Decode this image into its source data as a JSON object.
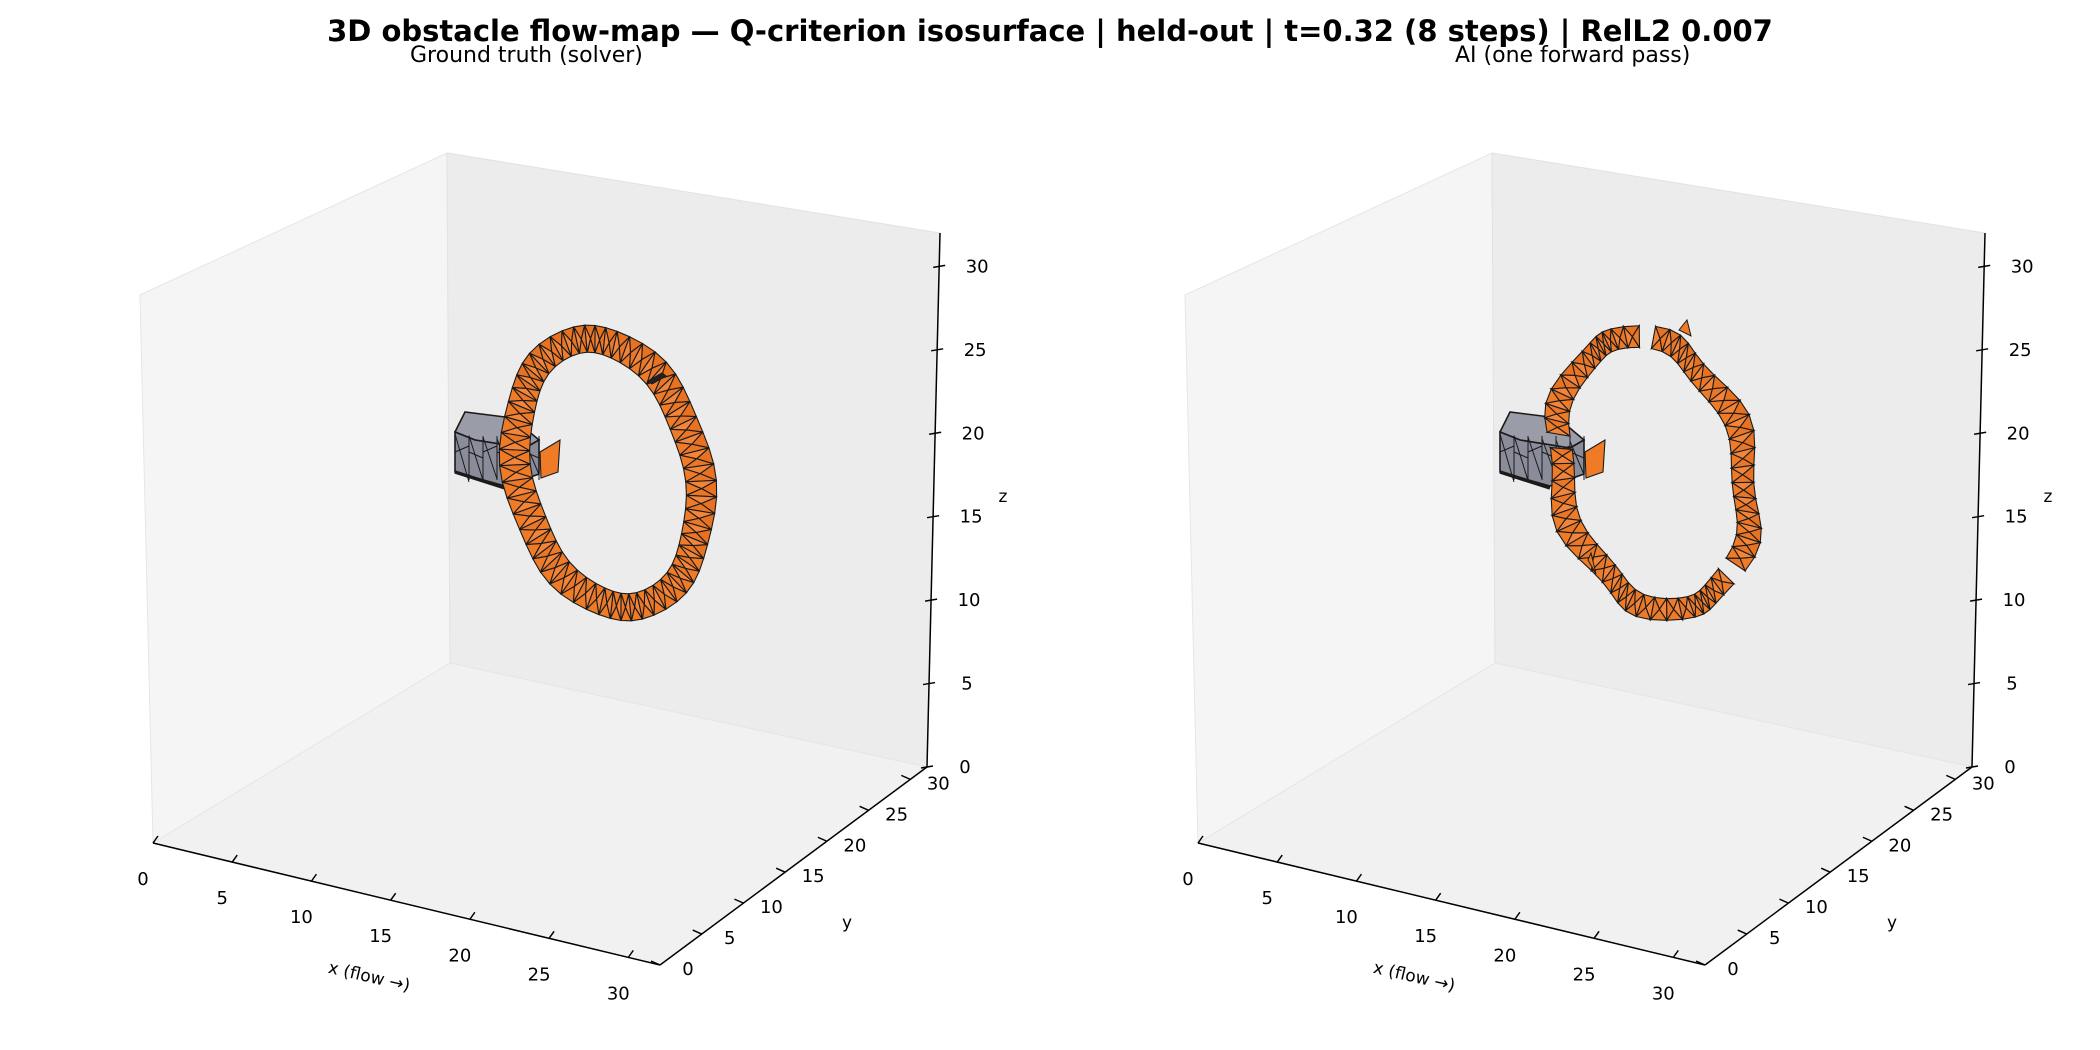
{
  "figure": {
    "title": "3D obstacle flow-map — Q-criterion isosurface | held-out | t=0.32 (8 steps) | RelL2 0.007"
  },
  "colors": {
    "isosurface": "#f07b26",
    "obstacle": "#8a8c99",
    "edge": "#1a1a1a",
    "pane_back": "#ececec",
    "pane_side": "#f5f5f5",
    "pane_floor": "#f1f1f1"
  },
  "chart_data": [
    {
      "type": "surface3d",
      "title": "Ground truth (solver)",
      "xlabel": "x (flow →)",
      "ylabel": "y",
      "zlabel": "z",
      "xlim": [
        0,
        32
      ],
      "ylim": [
        0,
        32
      ],
      "zlim": [
        0,
        32
      ],
      "xticks": [
        "0",
        "5",
        "10",
        "15",
        "20",
        "25",
        "30"
      ],
      "yticks": [
        "0",
        "5",
        "10",
        "15",
        "20",
        "25",
        "30"
      ],
      "zticks": [
        "0",
        "5",
        "10",
        "15",
        "20",
        "25",
        "30"
      ],
      "series": [
        {
          "kind": "obstacle",
          "center": [
            9,
            16,
            17.5
          ],
          "size": [
            4,
            6,
            6
          ]
        },
        {
          "kind": "vortex-ring",
          "center": [
            17,
            16,
            17.5
          ],
          "radius": 7.5,
          "thickness": 1.6
        }
      ]
    },
    {
      "type": "surface3d",
      "title": "AI (one forward pass)",
      "xlabel": "x (flow →)",
      "ylabel": "y",
      "zlabel": "z",
      "xlim": [
        0,
        32
      ],
      "ylim": [
        0,
        32
      ],
      "zlim": [
        0,
        32
      ],
      "xticks": [
        "0",
        "5",
        "10",
        "15",
        "20",
        "25",
        "30"
      ],
      "yticks": [
        "0",
        "5",
        "10",
        "15",
        "20",
        "25",
        "30"
      ],
      "zticks": [
        "0",
        "5",
        "10",
        "15",
        "20",
        "25",
        "30"
      ],
      "series": [
        {
          "kind": "obstacle",
          "center": [
            9,
            16,
            17.5
          ],
          "size": [
            4,
            6,
            6
          ]
        },
        {
          "kind": "vortex-ring",
          "center": [
            17,
            16,
            17.5
          ],
          "radius": 7.5,
          "thickness": 1.3
        }
      ]
    }
  ]
}
